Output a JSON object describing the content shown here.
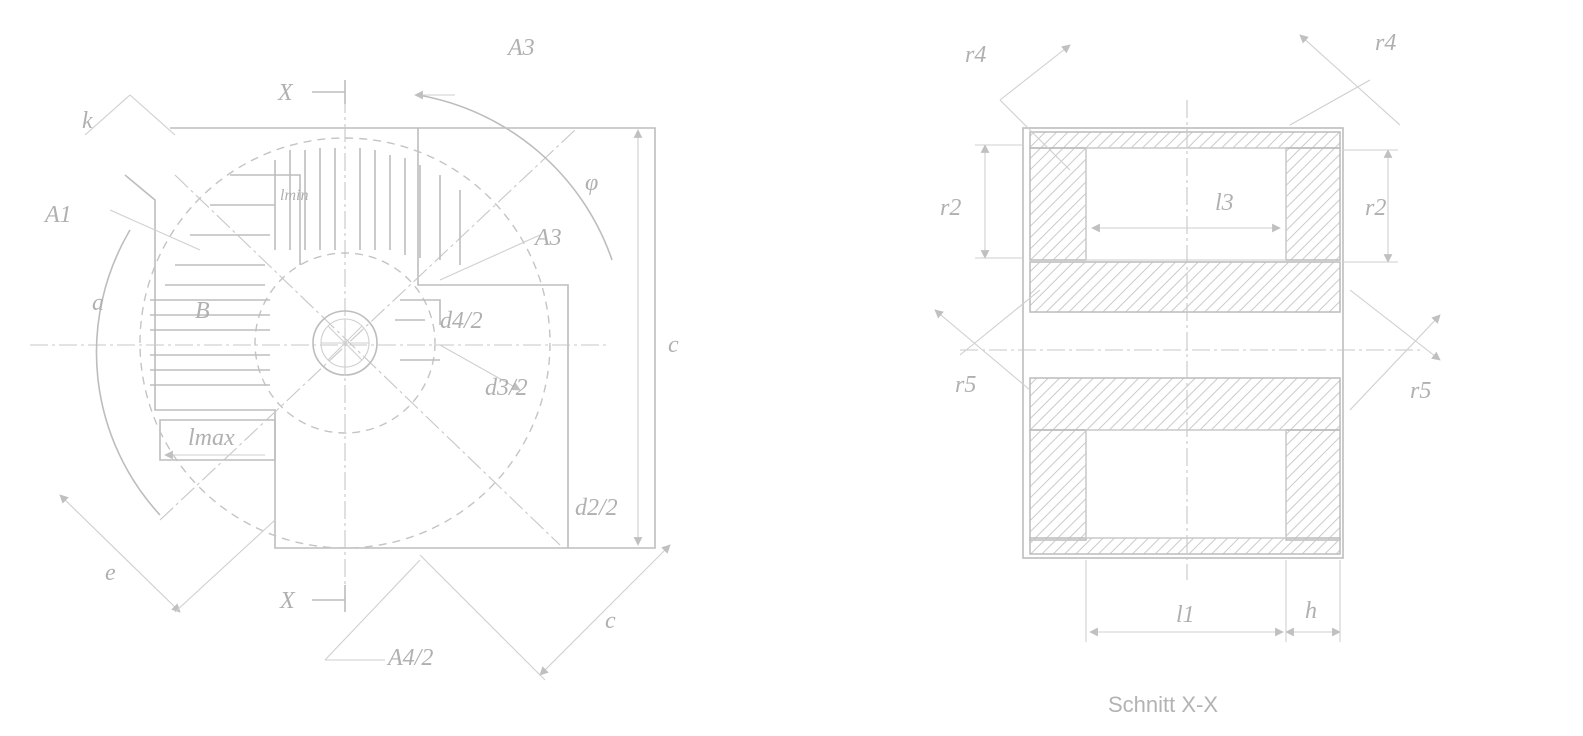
{
  "left_view": {
    "labels": {
      "section_mark": "X",
      "a3_top": "A3",
      "a3_right": "A3",
      "k": "k",
      "a1": "A1",
      "phi": "φ",
      "lmin": "lmin",
      "b": "B",
      "a": "a",
      "c_right": "c",
      "d4_half": "d4/2",
      "d3_half": "d3/2",
      "d2_half": "d2/2",
      "lmax": "lmax",
      "e": "e",
      "c_bottom": "c",
      "a4_half": "A4/2"
    }
  },
  "right_view": {
    "labels": {
      "r4_left": "r4",
      "r4_right": "r4",
      "r2_left": "r2",
      "r2_right": "r2",
      "l3": "l3",
      "r5_left": "r5",
      "r5_right": "r5",
      "l1": "l1",
      "h": "h"
    },
    "caption": "Schnitt X-X"
  },
  "colors": {
    "line": "#bdbdbd",
    "hatch": "#c8c8c8",
    "background": "#ffffff"
  }
}
